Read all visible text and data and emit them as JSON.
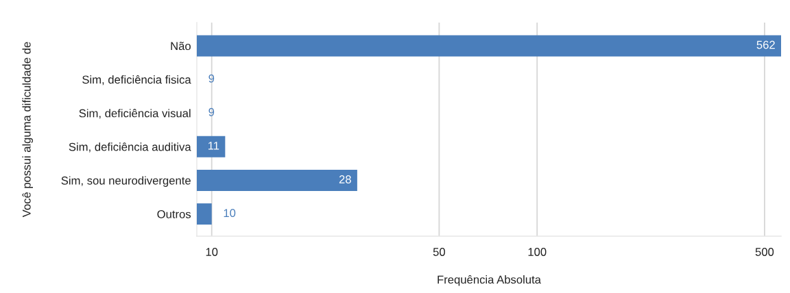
{
  "chart_data": {
    "type": "bar",
    "orientation": "horizontal",
    "categories": [
      "Não",
      "Sim, deficiência fisica",
      "Sim, deficiência visual",
      "Sim, deficiência auditiva",
      "Sim, sou neurodivergente",
      "Outros"
    ],
    "values": [
      562,
      9,
      9,
      11,
      28,
      10
    ],
    "color": "#4a7ebb",
    "xlabel": "Frequência Absoluta",
    "ylabel": "Você possui alguma dificuldade de",
    "log": "x",
    "xlim": [
      9,
      562
    ],
    "xticks": [
      10,
      50,
      100,
      500
    ],
    "grid": "x",
    "data_labels": true
  }
}
